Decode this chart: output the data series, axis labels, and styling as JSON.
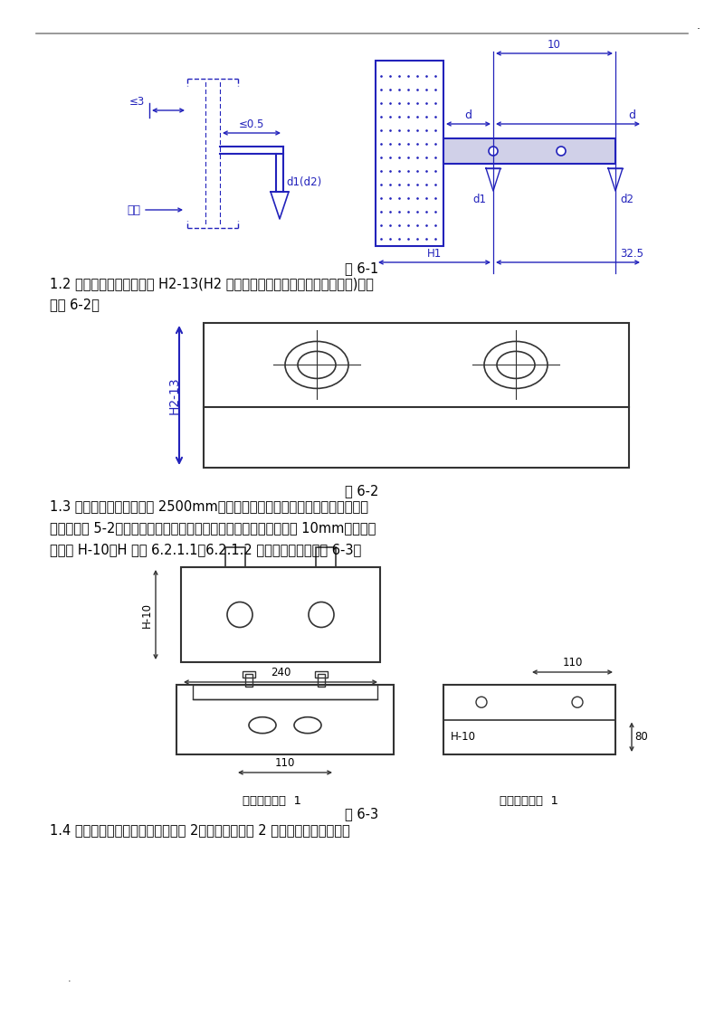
{
  "bg_color": "#ffffff",
  "draw_color": "#2222bb",
  "line_color": "#333333",
  "text_color": "#000000",
  "page_width": 8.0,
  "page_height": 11.32,
  "dpi": 100,
  "fig1_caption": "图 6-1",
  "fig2_caption": "图 6-2",
  "fig3_caption": "图 6-3",
  "text1": "1.2 轿厢导轨支架的长度为 H2-13(H2 为轿厢导轨样线与井道壁之间的距离)，参",
  "text1b": "见图 6-2。",
  "text2": "1.3 注意：上部导轨（长度 2500mm）为加强型导轨，连接上部加强型导轨的三",
  "text2b": "蓬（参见图 5-2）轿厢、对重导轨支架焊接时应向内（墙壁侧）缩进 10mm，其长度",
  "text2c": "尺寸为 H-10（H 为按 6.2.1.1、6.2.1.2 计算尺寸），参见图 6-3。",
  "text3": "1.4 轿厢导轨支架座与对重导轨支架 2、轿厢导轨支架 2 连接示意简图，参见图",
  "label1": "轿厢导轨支架  1",
  "label2": "对重导轨支架  1"
}
